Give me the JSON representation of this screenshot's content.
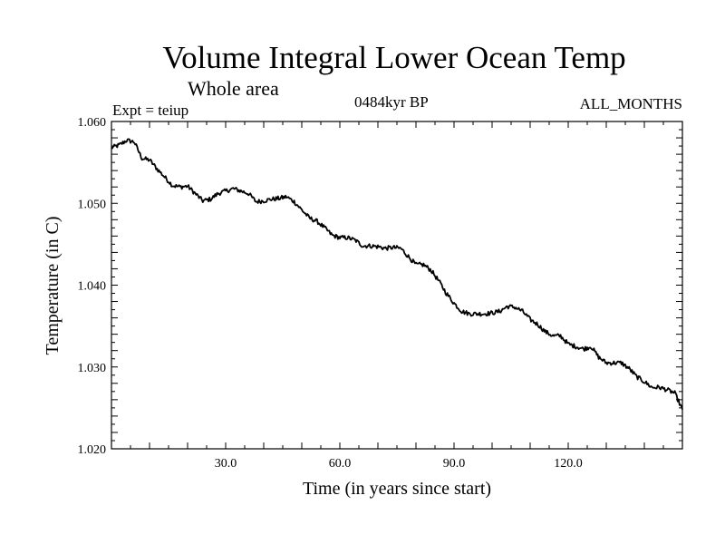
{
  "header": {
    "title": "Volume Integral Lower Ocean Temp",
    "subtitle": "Whole area",
    "experiment": "Expt = teiup",
    "period": "0484kyr BP",
    "months": "ALL_MONTHS"
  },
  "chart_data": {
    "type": "line",
    "title": "Volume Integral Lower Ocean Temp",
    "subtitle": "Whole area",
    "xlabel": "Time (in years since start)",
    "ylabel": "Temperature (in C)",
    "xlim": [
      0,
      150
    ],
    "ylim": [
      1.02,
      1.06
    ],
    "x_ticks": [
      30,
      60,
      90,
      120
    ],
    "x_tick_labels": [
      "30.0",
      "60.0",
      "90.0",
      "120.0"
    ],
    "y_ticks": [
      1.02,
      1.03,
      1.04,
      1.05,
      1.06
    ],
    "y_tick_labels": [
      "1.020",
      "1.030",
      "1.040",
      "1.050",
      "1.060"
    ],
    "grid": false,
    "series": [
      {
        "name": "Volume integral lower ocean temperature",
        "x": [
          0,
          2,
          4,
          6,
          8,
          10,
          12,
          14,
          16,
          18,
          20,
          22,
          24,
          26,
          28,
          30,
          32,
          34,
          36,
          38,
          40,
          42,
          44,
          46,
          48,
          50,
          52,
          54,
          56,
          58,
          60,
          62,
          64,
          66,
          68,
          70,
          72,
          74,
          76,
          78,
          80,
          82,
          84,
          86,
          88,
          90,
          92,
          94,
          96,
          98,
          100,
          102,
          104,
          106,
          108,
          110,
          112,
          114,
          116,
          118,
          120,
          122,
          124,
          126,
          128,
          130,
          132,
          134,
          136,
          138,
          140,
          142,
          144,
          146,
          148,
          150
        ],
        "y": [
          1.0568,
          1.0571,
          1.0577,
          1.0575,
          1.0555,
          1.0553,
          1.0542,
          1.0532,
          1.0522,
          1.052,
          1.0521,
          1.0512,
          1.0503,
          1.0505,
          1.0512,
          1.0515,
          1.0518,
          1.0515,
          1.0512,
          1.0502,
          1.0503,
          1.0505,
          1.0506,
          1.0508,
          1.0502,
          1.0492,
          1.0482,
          1.0478,
          1.047,
          1.0461,
          1.0458,
          1.0458,
          1.0455,
          1.0448,
          1.0448,
          1.0447,
          1.0445,
          1.0446,
          1.0445,
          1.0435,
          1.0425,
          1.0425,
          1.0418,
          1.0405,
          1.039,
          1.0378,
          1.0368,
          1.0365,
          1.0365,
          1.0365,
          1.0366,
          1.0368,
          1.0374,
          1.0373,
          1.0368,
          1.0358,
          1.0352,
          1.0343,
          1.0338,
          1.0338,
          1.0328,
          1.0325,
          1.0322,
          1.0325,
          1.0312,
          1.0305,
          1.0305,
          1.0305,
          1.0298,
          1.0288,
          1.0282,
          1.0275,
          1.0275,
          1.0272,
          1.0268,
          1.0248
        ]
      }
    ]
  }
}
